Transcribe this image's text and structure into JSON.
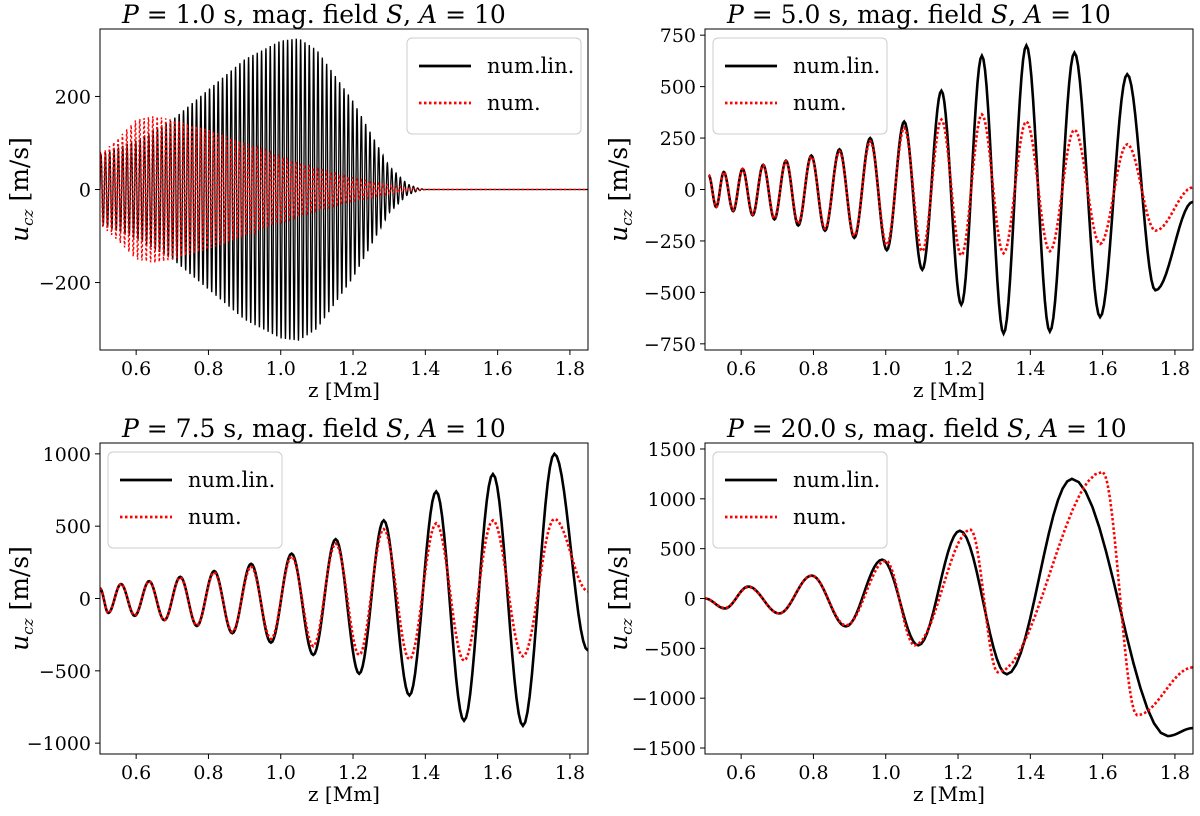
{
  "chart_data": [
    {
      "type": "line",
      "title": "P = 1.0 s, mag. field S, A = 10",
      "xlabel": "z [Mm]",
      "ylabel": "u_cz [m/s]",
      "xlim": [
        0.5,
        1.85
      ],
      "ylim": [
        -345,
        345
      ],
      "xticks": [
        0.6,
        0.8,
        1.0,
        1.2,
        1.4,
        1.6,
        1.8
      ],
      "xtick_labels": [
        "0.6",
        "0.8",
        "1.0",
        "1.2",
        "1.4",
        "1.6",
        "1.8"
      ],
      "yticks": [
        -200,
        0,
        200
      ],
      "ytick_labels": [
        "−200",
        "0",
        "200"
      ],
      "legend": {
        "position": "upper-right",
        "entries": [
          "num.lin.",
          "num."
        ]
      },
      "series": [
        {
          "name": "num.lin.",
          "color": "#000000",
          "style": "solid",
          "period_mm": 0.012,
          "phase": 0.0,
          "amp_z": [
            0.5,
            0.6,
            0.7,
            0.8,
            0.9,
            1.0,
            1.05,
            1.1,
            1.2,
            1.3,
            1.35,
            1.38,
            1.4,
            1.85
          ],
          "amp_u": [
            75,
            105,
            150,
            215,
            280,
            320,
            325,
            300,
            190,
            50,
            12,
            3,
            0,
            0
          ]
        },
        {
          "name": "num.",
          "color": "#ff0000",
          "style": "dotted",
          "period_mm": 0.012,
          "phase": 0.5,
          "amp_z": [
            0.5,
            0.55,
            0.6,
            0.65,
            0.7,
            0.8,
            0.9,
            1.0,
            1.1,
            1.2,
            1.3,
            1.35,
            1.4,
            1.85
          ],
          "amp_u": [
            75,
            110,
            150,
            158,
            150,
            128,
            100,
            70,
            45,
            25,
            10,
            4,
            0,
            0
          ]
        }
      ]
    },
    {
      "type": "line",
      "title": "P = 5.0 s, mag. field S, A = 10",
      "xlabel": "z [Mm]",
      "ylabel": "u_cz [m/s]",
      "xlim": [
        0.5,
        1.85
      ],
      "ylim": [
        -780,
        780
      ],
      "xticks": [
        0.6,
        0.8,
        1.0,
        1.2,
        1.4,
        1.6,
        1.8
      ],
      "xtick_labels": [
        "0.6",
        "0.8",
        "1.0",
        "1.2",
        "1.4",
        "1.6",
        "1.8"
      ],
      "yticks": [
        -750,
        -500,
        -250,
        0,
        250,
        500,
        750
      ],
      "ytick_labels": [
        "−750",
        "−500",
        "−250",
        "0",
        "250",
        "500",
        "750"
      ],
      "legend": {
        "position": "upper-left",
        "entries": [
          "num.lin.",
          "num."
        ]
      },
      "series": [
        {
          "name": "num.lin.",
          "z": [
            0.51,
            0.531,
            0.552,
            0.578,
            0.604,
            0.632,
            0.661,
            0.692,
            0.724,
            0.758,
            0.794,
            0.832,
            0.872,
            0.913,
            0.957,
            1.003,
            1.051,
            1.101,
            1.154,
            1.209,
            1.266,
            1.326,
            1.389,
            1.454,
            1.522,
            1.593,
            1.668,
            1.746,
            1.85
          ],
          "u_cz": [
            70,
            -85,
            85,
            -105,
            100,
            -125,
            120,
            -145,
            140,
            -175,
            165,
            -200,
            195,
            -235,
            250,
            -295,
            330,
            -390,
            480,
            -560,
            650,
            -700,
            700,
            -690,
            665,
            -620,
            560,
            -490,
            -60
          ]
        },
        {
          "name": "num.",
          "z": [
            0.51,
            0.531,
            0.552,
            0.578,
            0.604,
            0.632,
            0.661,
            0.692,
            0.724,
            0.758,
            0.794,
            0.832,
            0.872,
            0.913,
            0.957,
            1.003,
            1.051,
            1.101,
            1.154,
            1.209,
            1.266,
            1.326,
            1.389,
            1.454,
            1.522,
            1.593,
            1.668,
            1.746,
            1.85
          ],
          "u_cz": [
            70,
            -85,
            85,
            -100,
            100,
            -120,
            118,
            -140,
            138,
            -165,
            160,
            -190,
            185,
            -225,
            235,
            -270,
            300,
            -300,
            340,
            -320,
            365,
            -310,
            330,
            -300,
            290,
            -265,
            220,
            -200,
            10
          ]
        }
      ]
    },
    {
      "type": "line",
      "title": "P = 7.5 s, mag. field S, A = 10",
      "xlabel": "z [Mm]",
      "ylabel": "u_cz [m/s]",
      "xlim": [
        0.5,
        1.85
      ],
      "ylim": [
        -1075,
        1075
      ],
      "xticks": [
        0.6,
        0.8,
        1.0,
        1.2,
        1.4,
        1.6,
        1.8
      ],
      "xtick_labels": [
        "0.6",
        "0.8",
        "1.0",
        "1.2",
        "1.4",
        "1.6",
        "1.8"
      ],
      "yticks": [
        -1000,
        -500,
        0,
        500,
        1000
      ],
      "ytick_labels": [
        "−1000",
        "−500",
        "0",
        "500",
        "1000"
      ],
      "legend": {
        "position": "upper-left",
        "entries": [
          "num.lin.",
          "num."
        ]
      },
      "series": [
        {
          "name": "num.lin.",
          "z": [
            0.5,
            0.523,
            0.558,
            0.596,
            0.636,
            0.678,
            0.722,
            0.768,
            0.816,
            0.866,
            0.918,
            0.973,
            1.03,
            1.09,
            1.152,
            1.217,
            1.285,
            1.356,
            1.43,
            1.507,
            1.587,
            1.67,
            1.757,
            1.85
          ],
          "u_cz": [
            70,
            -100,
            100,
            -120,
            120,
            -150,
            150,
            -190,
            190,
            -240,
            240,
            -305,
            310,
            -390,
            410,
            -520,
            540,
            -670,
            740,
            -845,
            860,
            -880,
            1000,
            -360
          ]
        },
        {
          "name": "num.",
          "z": [
            0.5,
            0.523,
            0.558,
            0.596,
            0.636,
            0.678,
            0.722,
            0.768,
            0.816,
            0.866,
            0.918,
            0.973,
            1.03,
            1.09,
            1.152,
            1.217,
            1.285,
            1.356,
            1.43,
            1.507,
            1.587,
            1.67,
            1.757,
            1.85
          ],
          "u_cz": [
            70,
            -100,
            100,
            -115,
            118,
            -150,
            145,
            -185,
            180,
            -230,
            220,
            -280,
            290,
            -330,
            380,
            -390,
            480,
            -420,
            520,
            -430,
            540,
            -400,
            550,
            50
          ]
        }
      ]
    },
    {
      "type": "line",
      "title": "P = 20.0 s, mag. field S, A = 10",
      "xlabel": "z [Mm]",
      "ylabel": "u_cz [m/s]",
      "xlim": [
        0.5,
        1.85
      ],
      "ylim": [
        -1560,
        1560
      ],
      "xticks": [
        0.6,
        0.8,
        1.0,
        1.2,
        1.4,
        1.6,
        1.8
      ],
      "xtick_labels": [
        "0.6",
        "0.8",
        "1.0",
        "1.2",
        "1.4",
        "1.6",
        "1.8"
      ],
      "yticks": [
        -1500,
        -1000,
        -500,
        0,
        500,
        1000,
        1500
      ],
      "ytick_labels": [
        "−1500",
        "−1000",
        "−500",
        "0",
        "500",
        "1000",
        "1500"
      ],
      "legend": {
        "position": "upper-left",
        "entries": [
          "num.lin.",
          "num."
        ]
      },
      "series": [
        {
          "name": "num.lin.",
          "z": [
            0.5,
            0.555,
            0.62,
            0.705,
            0.795,
            0.89,
            0.99,
            1.09,
            1.205,
            1.335,
            1.515,
            1.78,
            1.85
          ],
          "u_cz": [
            0,
            -100,
            120,
            -150,
            230,
            -280,
            390,
            -470,
            680,
            -760,
            1200,
            -1380,
            -1300
          ]
        },
        {
          "name": "num.",
          "z": [
            0.5,
            0.555,
            0.62,
            0.705,
            0.795,
            0.89,
            1.0,
            1.08,
            1.235,
            1.31,
            1.6,
            1.695,
            1.85
          ],
          "u_cz": [
            0,
            -95,
            115,
            -150,
            230,
            -270,
            380,
            -470,
            690,
            -740,
            1270,
            -1170,
            -690
          ]
        }
      ]
    }
  ]
}
